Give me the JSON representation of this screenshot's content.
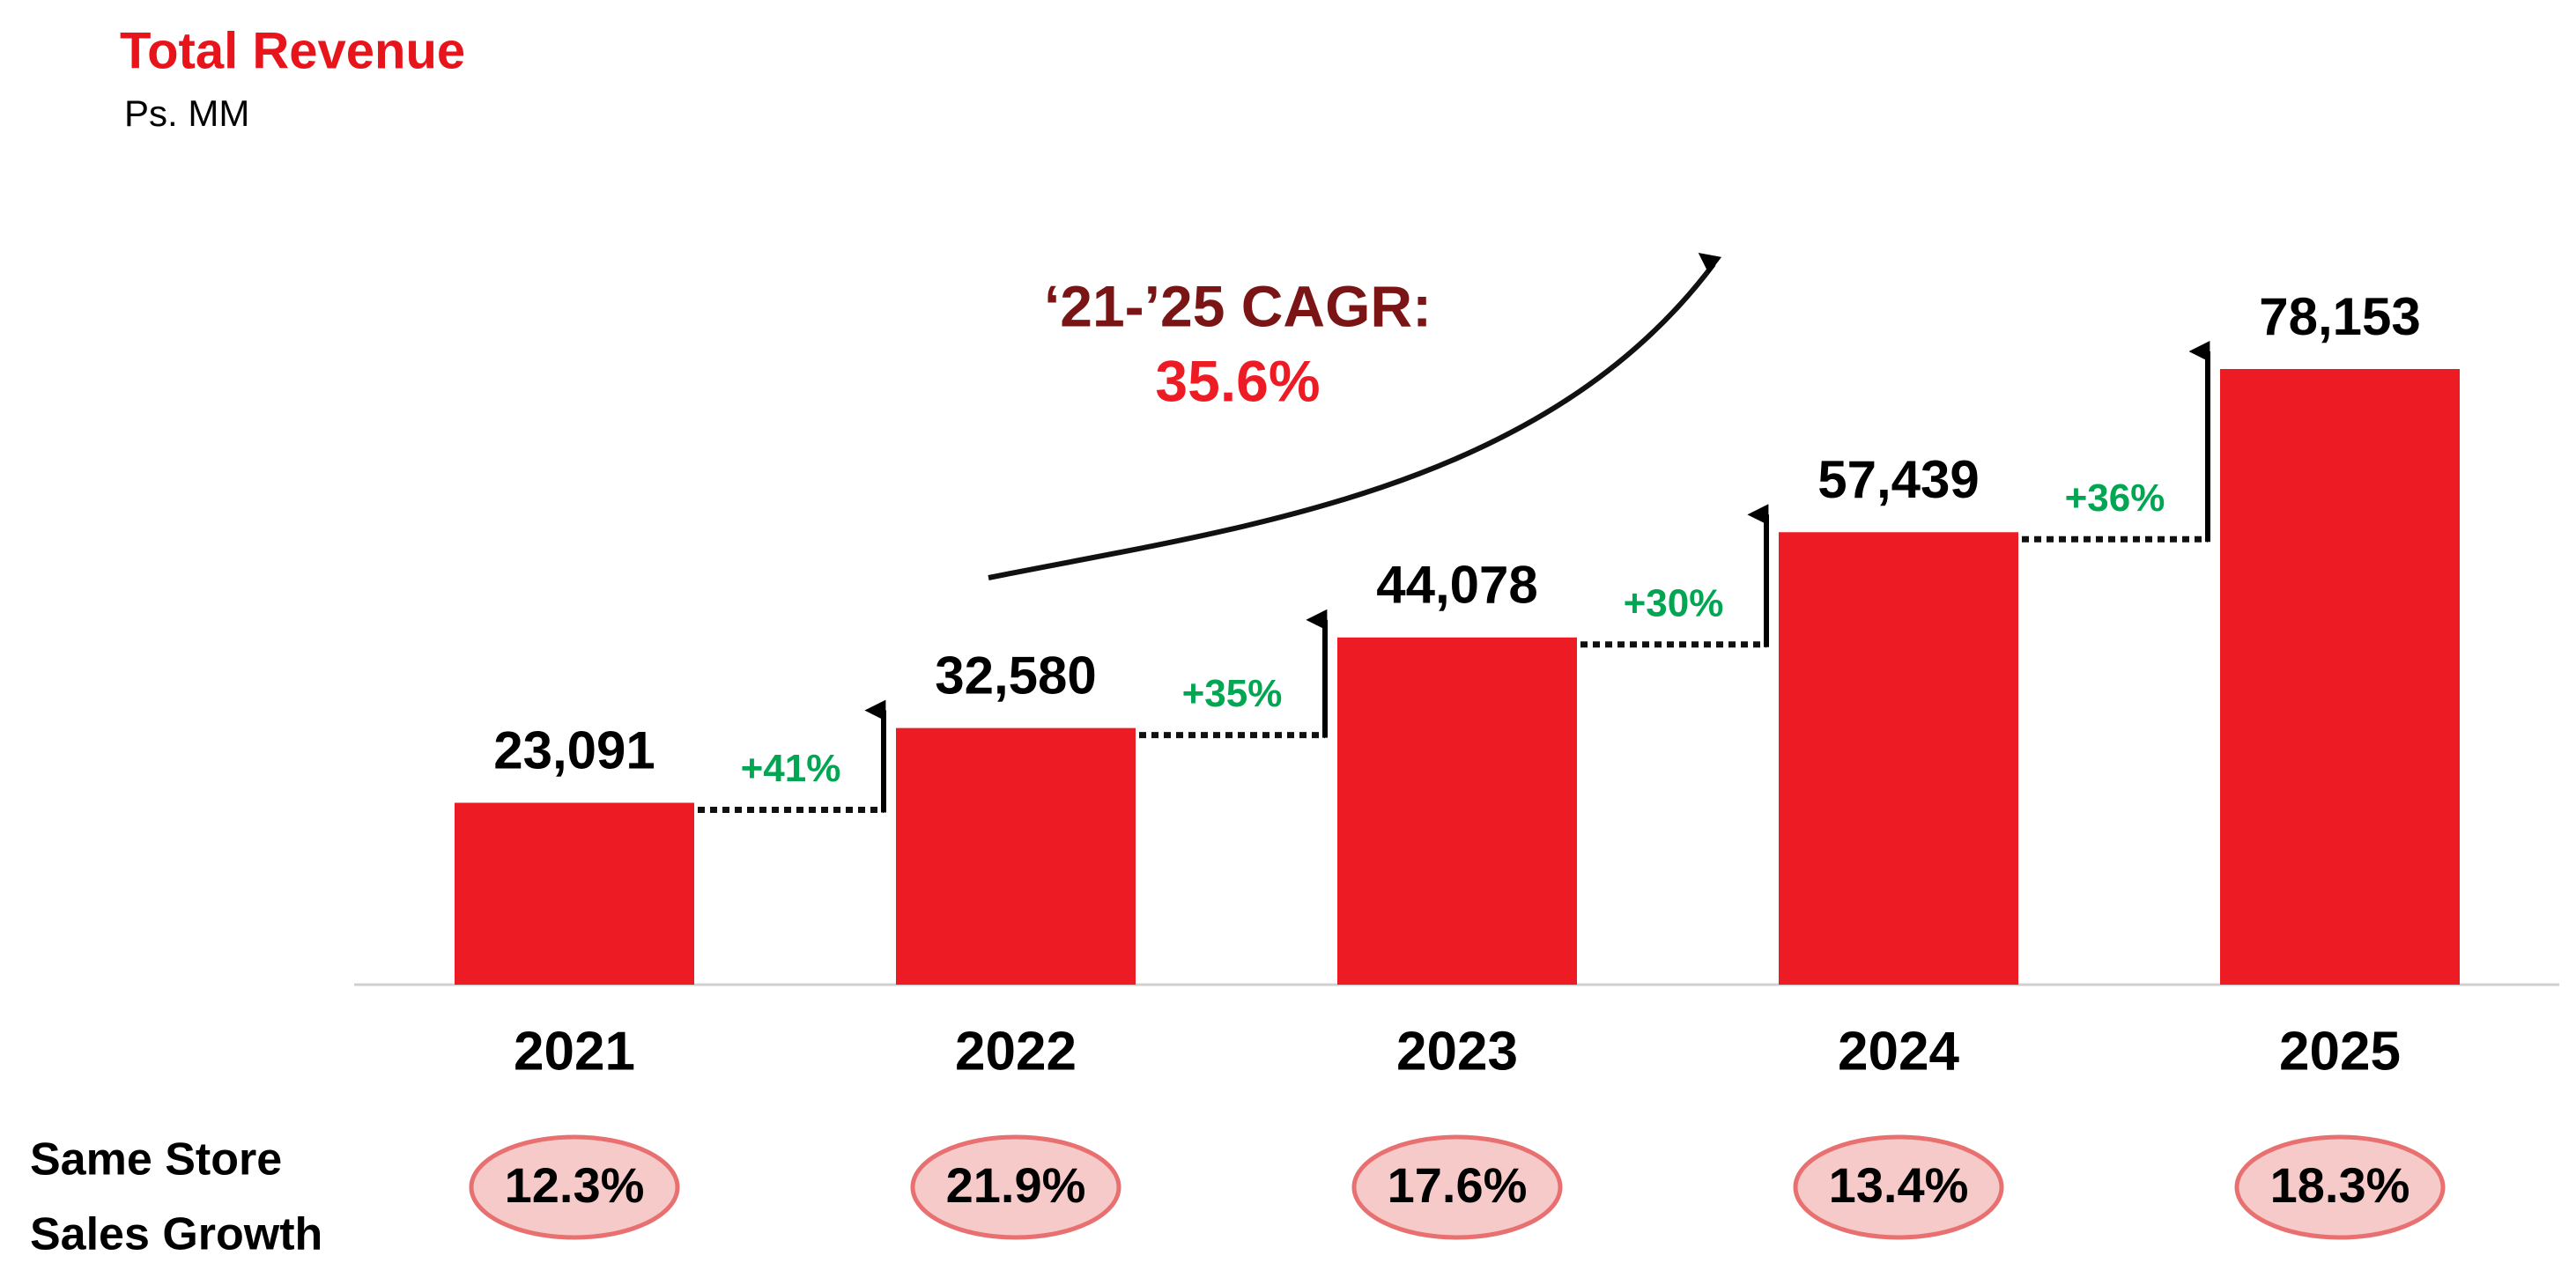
{
  "chart_data": {
    "type": "bar",
    "title": "Total Revenue",
    "subtitle": "Ps. MM",
    "categories": [
      "2021",
      "2022",
      "2023",
      "2024",
      "2025"
    ],
    "values": [
      23091,
      32580,
      44078,
      57439,
      78153
    ],
    "value_labels": [
      "23,091",
      "32,580",
      "44,078",
      "57,439",
      "78,153"
    ],
    "color": "#ed1c24",
    "growth": {
      "values": [
        41,
        35,
        30,
        36
      ],
      "value_labels": [
        "+41%",
        "+35%",
        "+30%",
        "+36%"
      ],
      "color": "#00a651"
    },
    "cagr": {
      "label": "‘21-’25 CAGR:",
      "value": 35.6,
      "value_label": "35.6%"
    },
    "same_store": {
      "label_lines": [
        "Same Store",
        "Sales Growth"
      ],
      "values": [
        12.3,
        21.9,
        17.6,
        13.4,
        18.3
      ],
      "value_labels": [
        "12.3%",
        "21.9%",
        "17.6%",
        "13.4%",
        "18.3%"
      ]
    }
  }
}
